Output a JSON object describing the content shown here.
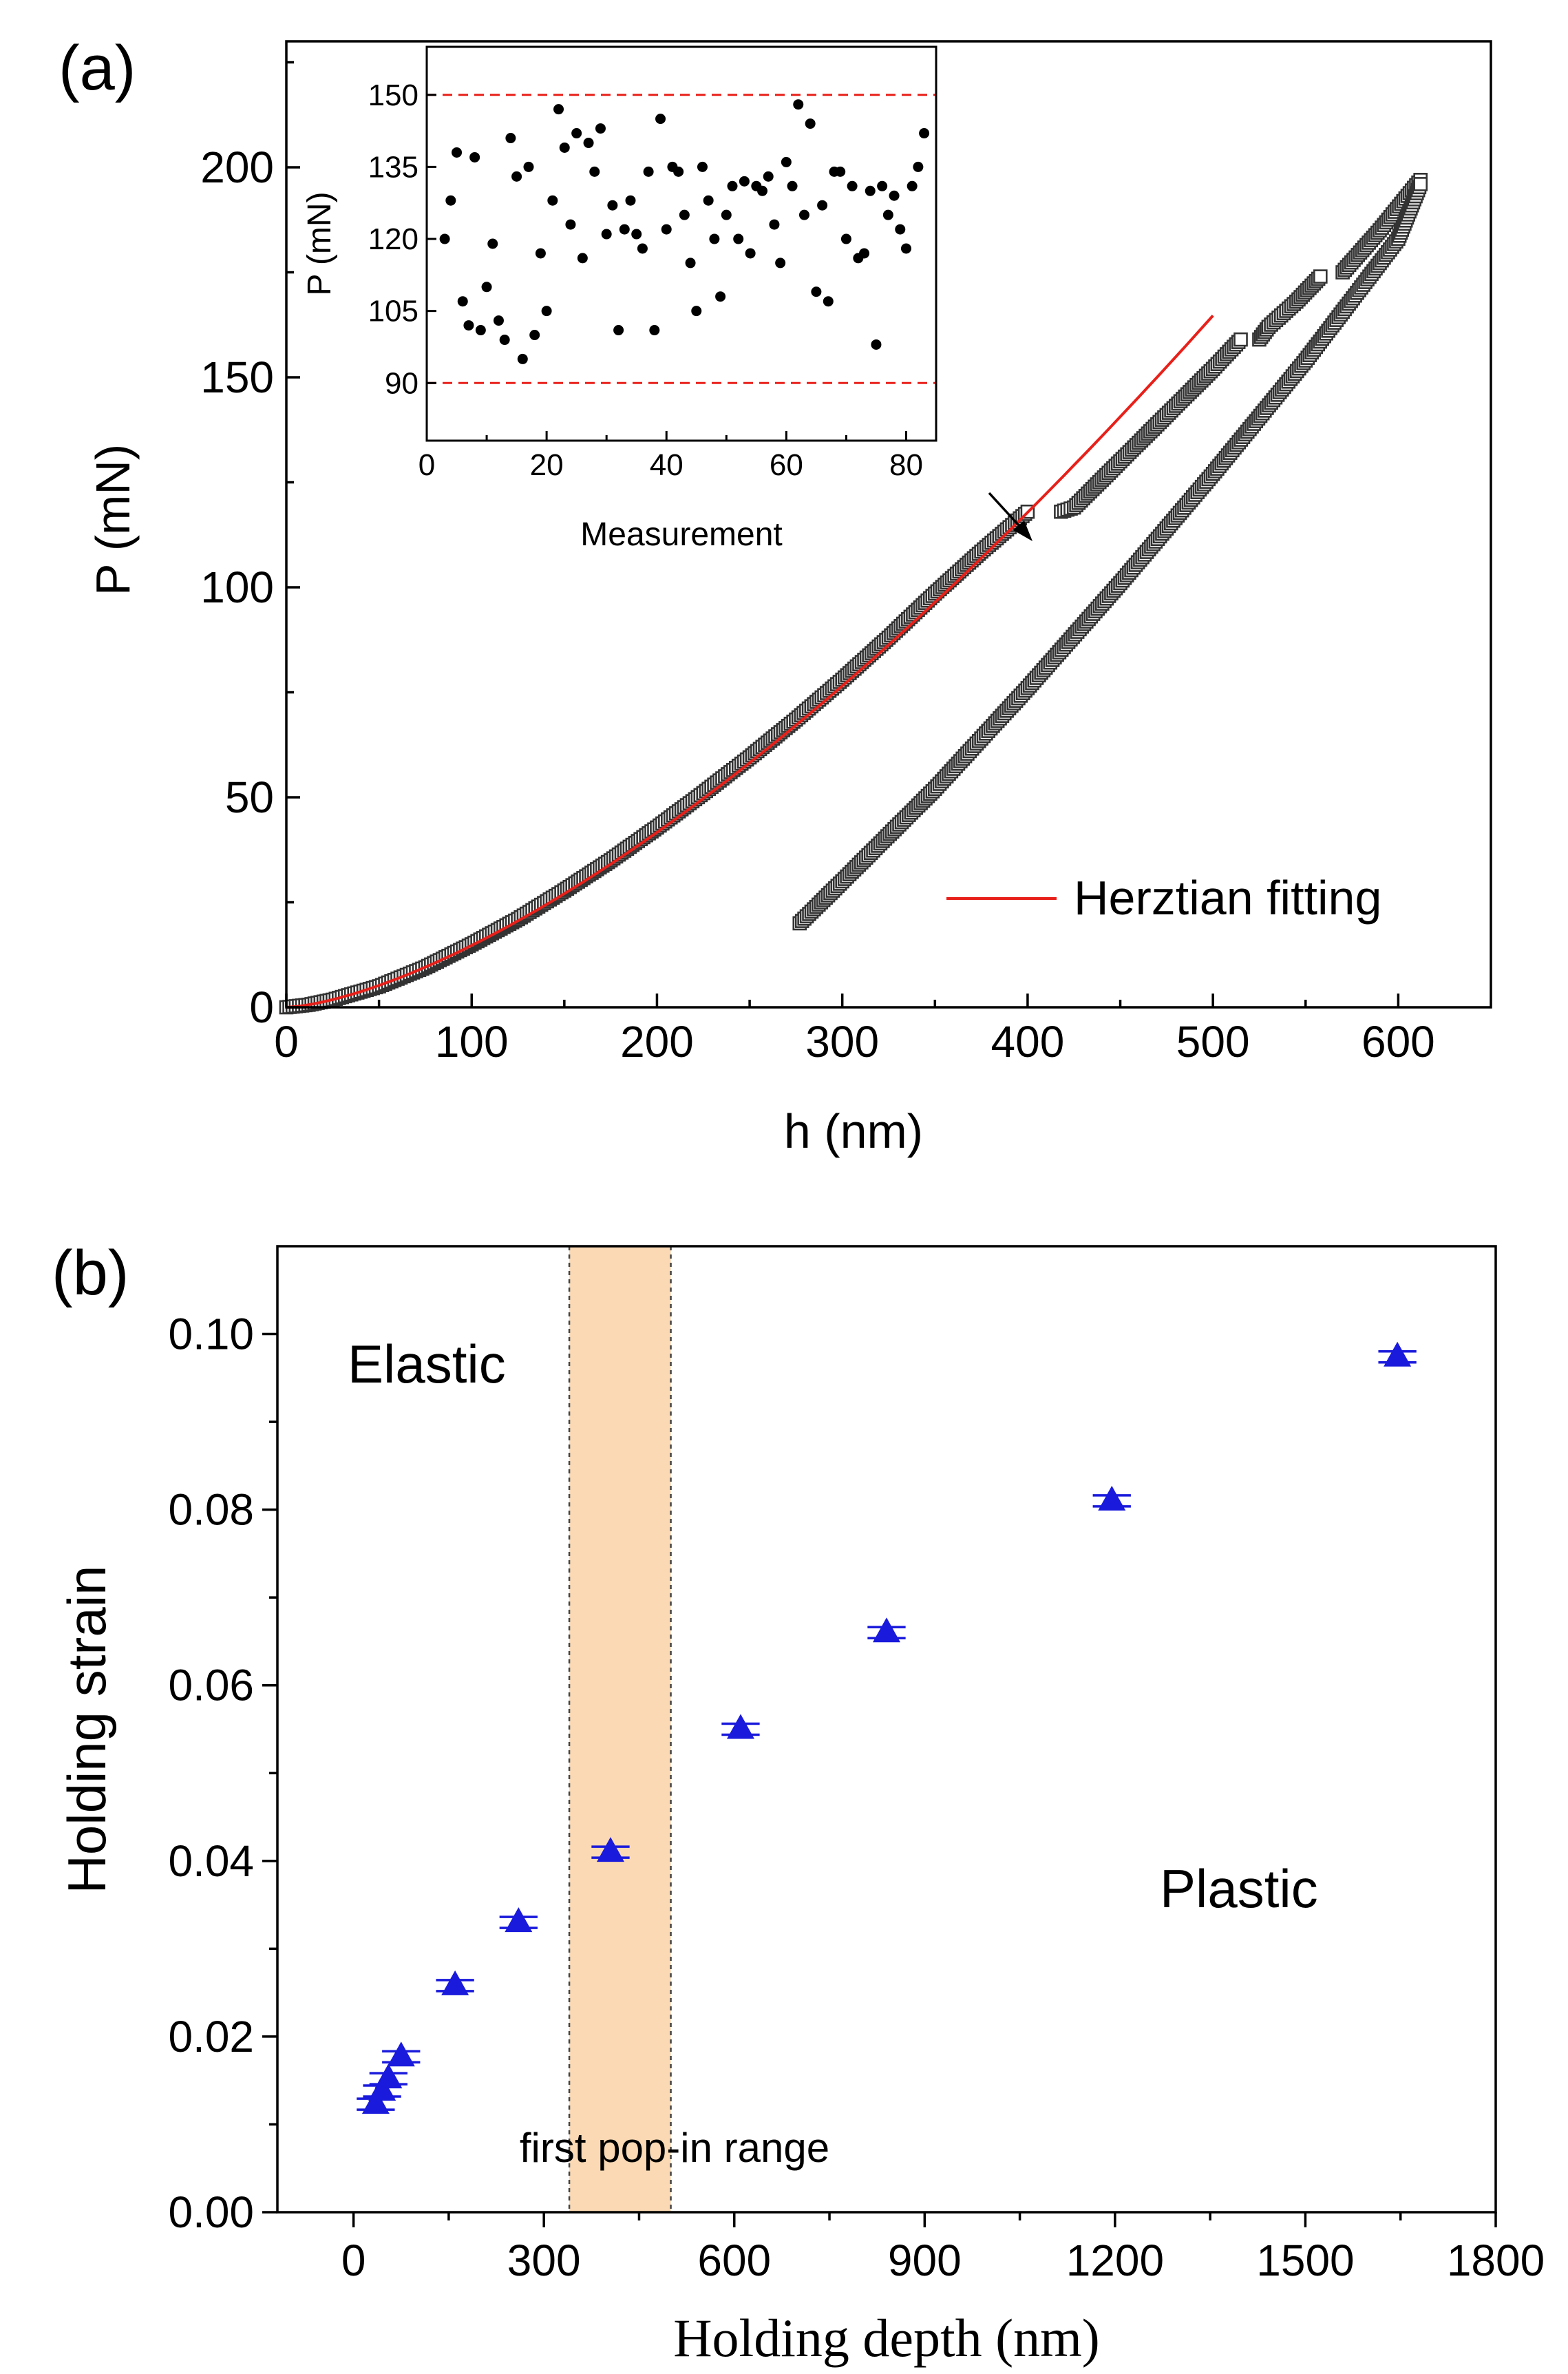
{
  "chart_data": [
    {
      "panel_label": "(a)",
      "type": "scatter",
      "xlabel": "h (nm)",
      "ylabel": "P (mN)",
      "xlim": [
        0,
        650
      ],
      "ylim": [
        0,
        230
      ],
      "xticks": [
        "0",
        "100",
        "200",
        "300",
        "400",
        "500",
        "600"
      ],
      "yticks": [
        "0",
        "50",
        "100",
        "150",
        "200"
      ],
      "grid": false,
      "legend_position": "bottom-right",
      "legend": [
        "Herztian fitting"
      ],
      "series": [
        {
          "marker": "open-square",
          "color": "#333333",
          "segments": [
            {
              "x": [
                0,
                12,
                25,
                50,
                75,
                100,
                125,
                150,
                175,
                200,
                225,
                250,
                275,
                300,
                325,
                350,
                375,
                400
              ],
              "y": [
                0,
                0.6,
                1.8,
                5.0,
                9.5,
                15.0,
                21.0,
                27.8,
                35.0,
                42.8,
                51.0,
                59.5,
                68.5,
                78.0,
                88.0,
                98.5,
                108.5,
                118.0
              ]
            },
            {
              "x": [
                418,
                425,
                450,
                475,
                500,
                515
              ],
              "y": [
                118,
                119,
                130,
                141,
                152,
                159
              ]
            },
            {
              "x": [
                525,
                530,
                545,
                558
              ],
              "y": [
                159,
                162,
                168,
                174
              ]
            },
            {
              "x": [
                570,
                590,
                612
              ],
              "y": [
                175,
                185,
                197
              ]
            },
            {
              "x": [
                277,
                300,
                350,
                400,
                450,
                500,
                550,
                600,
                612
              ],
              "y": [
                20,
                30,
                52,
                76,
                101,
                127,
                154,
                183,
                196
              ]
            }
          ]
        },
        {
          "name": "Herztian fitting",
          "type": "line",
          "color": "#e8201a",
          "function": "P = 0.01473 * h^1.5",
          "xrange": [
            0,
            500
          ]
        }
      ],
      "annotations": [
        {
          "type": "arrow",
          "label": "",
          "points_to": {
            "x": 400,
            "y": 118
          }
        }
      ],
      "inset": {
        "type": "scatter",
        "xlabel": "Measurement",
        "ylabel": "P (mN)",
        "xlim": [
          0,
          85
        ],
        "ylim": [
          78,
          160
        ],
        "xticks": [
          "0",
          "20",
          "40",
          "60",
          "80"
        ],
        "yticks": [
          "90",
          "105",
          "120",
          "135",
          "150"
        ],
        "reference_lines": [
          {
            "y": 150,
            "color": "#e8201a",
            "style": "dashed"
          },
          {
            "y": 90,
            "color": "#e8201a",
            "style": "dashed"
          }
        ],
        "x": [
          3,
          4,
          5,
          6,
          7,
          8,
          9,
          10,
          11,
          12,
          13,
          14,
          15,
          16,
          17,
          18,
          19,
          20,
          21,
          22,
          23,
          24,
          25,
          26,
          27,
          28,
          29,
          30,
          31,
          32,
          33,
          34,
          35,
          36,
          37,
          38,
          39,
          40,
          41,
          42,
          43,
          44,
          45,
          46,
          47,
          48,
          49,
          50,
          51,
          52,
          53,
          54,
          55,
          56,
          57,
          58,
          59,
          60,
          61,
          62,
          63,
          64,
          65,
          66,
          67,
          68,
          69,
          70,
          71,
          72,
          73,
          74,
          75,
          76,
          77,
          78,
          79,
          80,
          81,
          82,
          83
        ],
        "y": [
          120,
          128,
          138,
          107,
          102,
          137,
          101,
          110,
          119,
          103,
          99,
          141,
          133,
          95,
          135,
          100,
          117,
          105,
          128,
          147,
          139,
          123,
          142,
          116,
          140,
          134,
          143,
          121,
          127,
          101,
          122,
          128,
          121,
          118,
          134,
          101,
          145,
          122,
          135,
          134,
          125,
          115,
          105,
          135,
          128,
          120,
          108,
          125,
          131,
          120,
          132,
          117,
          131,
          130,
          133,
          123,
          115,
          136,
          131,
          148,
          125,
          144,
          109,
          127,
          107,
          134,
          134,
          120,
          131,
          116,
          117,
          130,
          98,
          131,
          125,
          129,
          122,
          118,
          131,
          135,
          142
        ]
      }
    },
    {
      "panel_label": "(b)",
      "type": "scatter",
      "xlabel": "Holding depth (nm)",
      "ylabel": "Holding strain",
      "xlim": [
        -120,
        1800
      ],
      "ylim": [
        0,
        0.11
      ],
      "xticks": [
        "0",
        "300",
        "600",
        "900",
        "1200",
        "1500",
        "1800"
      ],
      "yticks": [
        "0.00",
        "0.02",
        "0.04",
        "0.06",
        "0.08",
        "0.10"
      ],
      "grid": false,
      "series": [
        {
          "marker": "filled-triangle",
          "color": "#1a1adc",
          "error_bars": "horizontal",
          "x": [
            35,
            45,
            55,
            75,
            160,
            260,
            405,
            610,
            840,
            1195,
            1645
          ],
          "y": [
            0.0123,
            0.0138,
            0.0152,
            0.0177,
            0.0258,
            0.033,
            0.041,
            0.055,
            0.066,
            0.081,
            0.0974
          ],
          "xerr": [
            30,
            30,
            30,
            30,
            30,
            30,
            30,
            30,
            30,
            30,
            30
          ]
        }
      ],
      "shaded_region": {
        "x": [
          340,
          500
        ],
        "label": "first pop-in range",
        "color": "#fad9b4"
      },
      "region_labels": [
        "Elastic",
        "Plastic"
      ]
    }
  ]
}
